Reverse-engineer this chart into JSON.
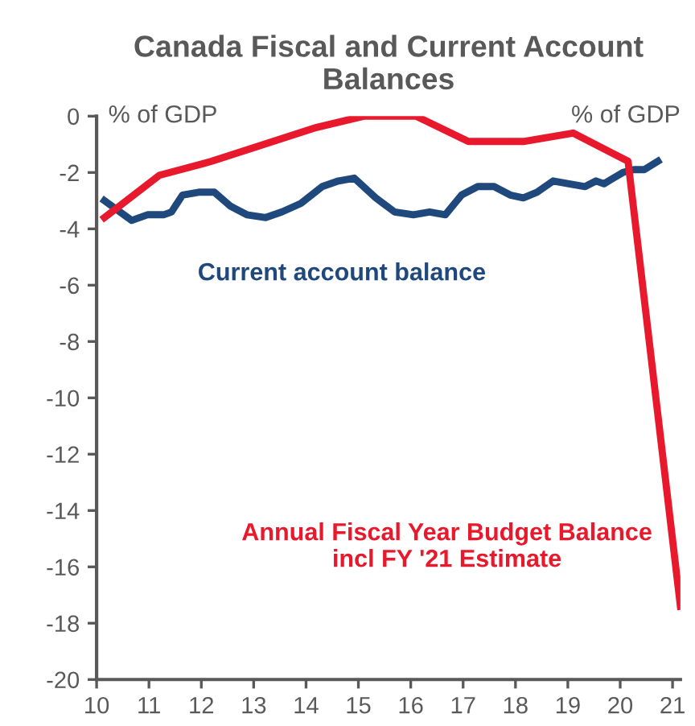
{
  "chart_data": {
    "type": "line",
    "title": "Canada Fiscal and Current Account Balances",
    "annotations": [
      "% of GDP",
      "% of GDP"
    ],
    "series": [
      {
        "name": "Current account balance",
        "color": "#1f497d",
        "x": [
          10.15,
          10.67,
          10.97,
          11.28,
          11.43,
          11.64,
          11.95,
          12.25,
          12.56,
          12.87,
          13.23,
          13.54,
          13.9,
          14.31,
          14.62,
          14.92,
          15.33,
          15.69,
          16.05,
          16.36,
          16.66,
          16.97,
          17.28,
          17.59,
          17.9,
          18.15,
          18.41,
          18.72,
          19.02,
          19.33,
          19.54,
          19.69,
          20.05,
          20.26,
          20.46,
          20.72
        ],
        "values": [
          -3.0,
          -3.7,
          -3.5,
          -3.5,
          -3.4,
          -2.8,
          -2.7,
          -2.7,
          -3.2,
          -3.5,
          -3.6,
          -3.4,
          -3.1,
          -2.5,
          -2.3,
          -2.2,
          -2.9,
          -3.4,
          -3.5,
          -3.4,
          -3.5,
          -2.8,
          -2.5,
          -2.5,
          -2.8,
          -2.9,
          -2.7,
          -2.3,
          -2.4,
          -2.5,
          -2.3,
          -2.4,
          -2.0,
          -1.9,
          -1.9,
          -1.6
        ]
      },
      {
        "name": "Annual Fiscal Year Budget Balance incl FY '21 Estimate",
        "color": "#e8192c",
        "x": [
          10.15,
          11.2,
          12.2,
          13.2,
          14.2,
          15.1,
          16.1,
          17.1,
          18.15,
          19.1,
          20.15,
          21.15
        ],
        "values": [
          -3.6,
          -2.1,
          -1.6,
          -1.0,
          -0.4,
          0,
          0,
          -0.9,
          -0.9,
          -0.6,
          -1.6,
          -17.4
        ]
      }
    ],
    "xlim": [
      10,
      21.15
    ],
    "xticks": [
      10,
      11,
      12,
      13,
      14,
      15,
      16,
      17,
      18,
      19,
      20,
      21
    ],
    "ylim": [
      -20,
      0
    ],
    "yticks": [
      0,
      -2,
      -4,
      -6,
      -8,
      -10,
      -12,
      -14,
      -16,
      -18,
      -20
    ],
    "grid": false,
    "legend": false,
    "marker": "none",
    "line_style": "solid"
  }
}
